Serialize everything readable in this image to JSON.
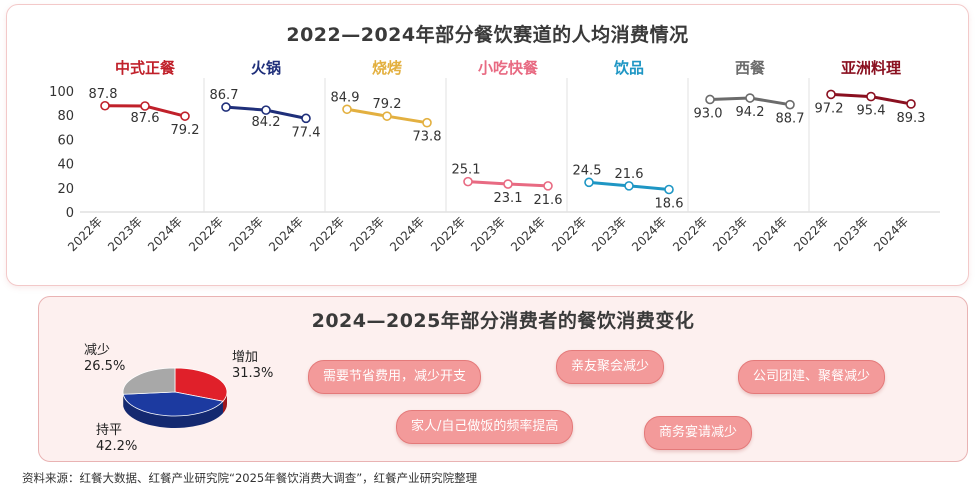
{
  "top": {
    "title": "2022—2024年部分餐饮赛道的人均消费情况"
  },
  "bottom": {
    "title": "2024—2025年部分消费者的餐饮消费变化",
    "bubbles": [
      "需要节省费用，减少开支",
      "亲友聚会减少",
      "公司团建、聚餐减少",
      "家人/自己做饭的频率提高",
      "商务宴请减少"
    ]
  },
  "source": "资料来源：红餐大数据、红餐产业研究院“2025年餐饮消费大调查”，红餐产业研究院整理",
  "chart_data": [
    {
      "type": "line",
      "title": "2022—2024年部分餐饮赛道的人均消费情况",
      "ylim": [
        0,
        100
      ],
      "yticks": [
        "0",
        "20",
        "40",
        "60",
        "80",
        "100"
      ],
      "categories": [
        "2022年",
        "2023年",
        "2024年"
      ],
      "grid": false,
      "series": [
        {
          "name": "中式正餐",
          "values": [
            87.8,
            87.6,
            79.2
          ],
          "color": "#c0202a"
        },
        {
          "name": "火锅",
          "values": [
            86.7,
            84.2,
            77.4
          ],
          "color": "#1f2f7a"
        },
        {
          "name": "烧烤",
          "values": [
            84.9,
            79.2,
            73.8
          ],
          "color": "#e3b040"
        },
        {
          "name": "小吃快餐",
          "values": [
            25.1,
            23.1,
            21.6
          ],
          "color": "#e86a82"
        },
        {
          "name": "饮品",
          "values": [
            24.5,
            21.6,
            18.6
          ],
          "color": "#1e96c4"
        },
        {
          "name": "西餐",
          "values": [
            93.0,
            94.2,
            88.7
          ],
          "color": "#6b6b6b"
        },
        {
          "name": "亚洲料理",
          "values": [
            97.2,
            95.4,
            89.3
          ],
          "color": "#8a1020"
        }
      ]
    },
    {
      "type": "pie",
      "title": "",
      "slices": [
        {
          "name": "增加",
          "value": 31.3,
          "label": "31.3%",
          "color": "#e0202a"
        },
        {
          "name": "持平",
          "value": 42.2,
          "label": "42.2%",
          "color": "#1c3aa0"
        },
        {
          "name": "减少",
          "value": 26.5,
          "label": "26.5%",
          "color": "#a8a8a8"
        }
      ]
    }
  ]
}
